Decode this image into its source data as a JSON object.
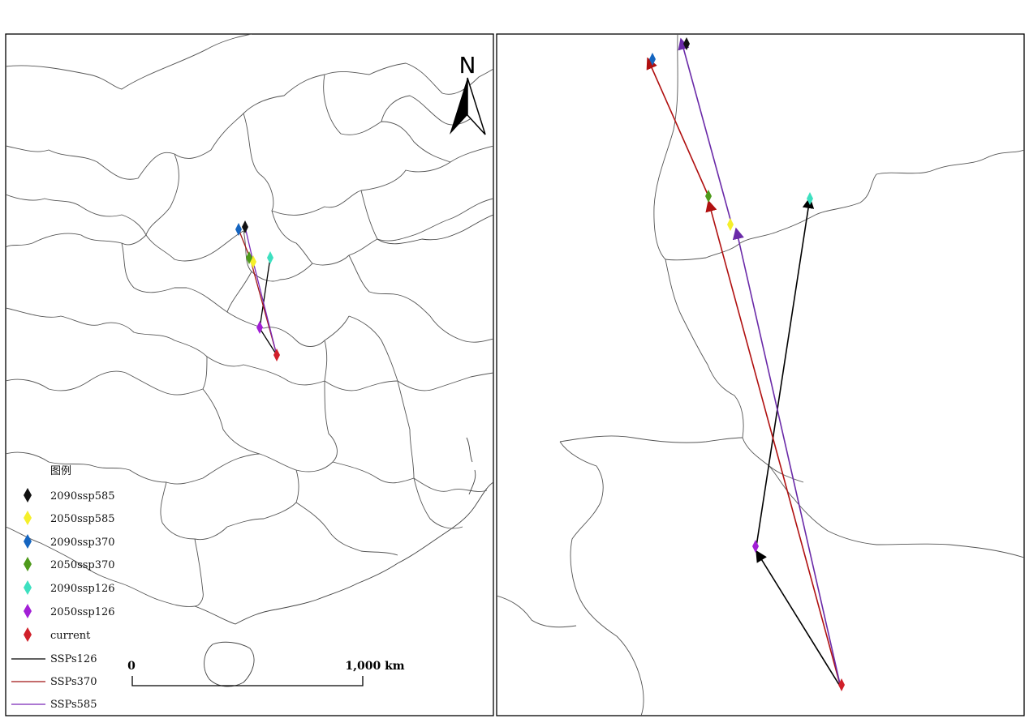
{
  "legend": {
    "title": "图例",
    "items": [
      {
        "label": "2090ssp585",
        "symbol": "diamond",
        "color": "#111111"
      },
      {
        "label": "2050ssp585",
        "symbol": "diamond",
        "color": "#f5ef2a"
      },
      {
        "label": "2090ssp370",
        "symbol": "diamond",
        "color": "#1565c0"
      },
      {
        "label": "2050ssp370",
        "symbol": "diamond",
        "color": "#4e9a1b"
      },
      {
        "label": "2090ssp126",
        "symbol": "diamond",
        "color": "#3de0c0"
      },
      {
        "label": "2050ssp126",
        "symbol": "diamond",
        "color": "#a21fd6"
      },
      {
        "label": "current",
        "symbol": "diamond",
        "color": "#d0202a"
      },
      {
        "label": "SSPs126",
        "symbol": "line",
        "color": "#000000"
      },
      {
        "label": "SSPs370",
        "symbol": "line",
        "color": "#a01515"
      },
      {
        "label": "SSPs585",
        "symbol": "line",
        "color": "#7a28b8"
      }
    ]
  },
  "north_arrow": {
    "label": "N",
    "icon": "north-arrow-icon"
  },
  "scale_bar": {
    "start_label": "0",
    "end_label": "1,000 km"
  },
  "colors": {
    "ssp126_line": "#000000",
    "ssp370_line": "#a01515",
    "ssp585_line": "#7a28b8"
  }
}
